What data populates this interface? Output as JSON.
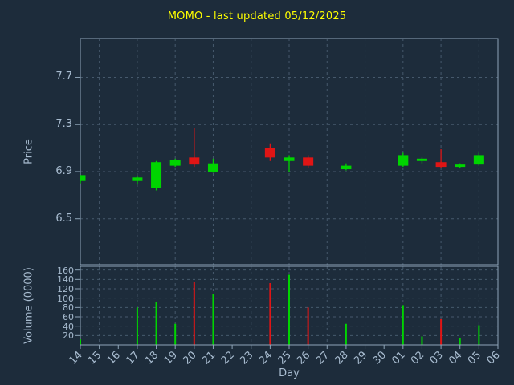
{
  "chart_data": {
    "type": "candlestick",
    "title": "MOMO - last updated 05/12/2025",
    "xlabel": "Day",
    "price_axis": {
      "label": "Price",
      "ticks": [
        7.7,
        7.3,
        6.9,
        6.5
      ],
      "ylim": [
        6.11,
        8.03
      ]
    },
    "volume_axis": {
      "label": "Volume (0000)",
      "ticks": [
        160,
        140,
        120,
        100,
        80,
        60,
        40,
        20
      ],
      "ylim": [
        0,
        168
      ]
    },
    "x_ticklabels": [
      "14",
      "15",
      "16",
      "17",
      "18",
      "19",
      "20",
      "21",
      "22",
      "23",
      "24",
      "25",
      "26",
      "27",
      "28",
      "29",
      "30",
      "01",
      "02",
      "03",
      "04",
      "05",
      "06"
    ],
    "colors": {
      "background": "#1d2c3b",
      "title": "#ffff00",
      "axis_text": "#a8bcd0",
      "grid": "#46596c",
      "border": "#8ea4b8",
      "up": "#00d500",
      "down": "#e01515"
    },
    "candles": [
      {
        "x": "14",
        "open": 6.82,
        "high": 6.87,
        "low": 6.8,
        "close": 6.87,
        "volume": 12
      },
      {
        "x": "17",
        "open": 6.82,
        "high": 6.86,
        "low": 6.79,
        "close": 6.85,
        "volume": 80
      },
      {
        "x": "18",
        "open": 6.76,
        "high": 6.99,
        "low": 6.74,
        "close": 6.98,
        "volume": 92
      },
      {
        "x": "19",
        "open": 6.95,
        "high": 7.01,
        "low": 6.94,
        "close": 7.0,
        "volume": 45
      },
      {
        "x": "20",
        "open": 7.02,
        "high": 7.27,
        "low": 6.94,
        "close": 6.96,
        "volume": 135
      },
      {
        "x": "21",
        "open": 6.9,
        "high": 7.01,
        "low": 6.89,
        "close": 6.97,
        "volume": 108
      },
      {
        "x": "24",
        "open": 7.1,
        "high": 7.14,
        "low": 6.99,
        "close": 7.02,
        "volume": 132
      },
      {
        "x": "25",
        "open": 6.99,
        "high": 7.04,
        "low": 6.9,
        "close": 7.02,
        "volume": 150
      },
      {
        "x": "26",
        "open": 7.02,
        "high": 7.04,
        "low": 6.93,
        "close": 6.95,
        "volume": 80
      },
      {
        "x": "28",
        "open": 6.92,
        "high": 6.97,
        "low": 6.91,
        "close": 6.95,
        "volume": 45
      },
      {
        "x": "01",
        "open": 6.95,
        "high": 7.06,
        "low": 6.94,
        "close": 7.04,
        "volume": 85
      },
      {
        "x": "02",
        "open": 6.99,
        "high": 7.02,
        "low": 6.97,
        "close": 7.01,
        "volume": 18
      },
      {
        "x": "03",
        "open": 6.98,
        "high": 7.09,
        "low": 6.93,
        "close": 6.94,
        "volume": 55
      },
      {
        "x": "04",
        "open": 6.94,
        "high": 6.97,
        "low": 6.93,
        "close": 6.96,
        "volume": 15
      },
      {
        "x": "05",
        "open": 6.96,
        "high": 7.06,
        "low": 6.95,
        "close": 7.04,
        "volume": 42
      }
    ]
  }
}
